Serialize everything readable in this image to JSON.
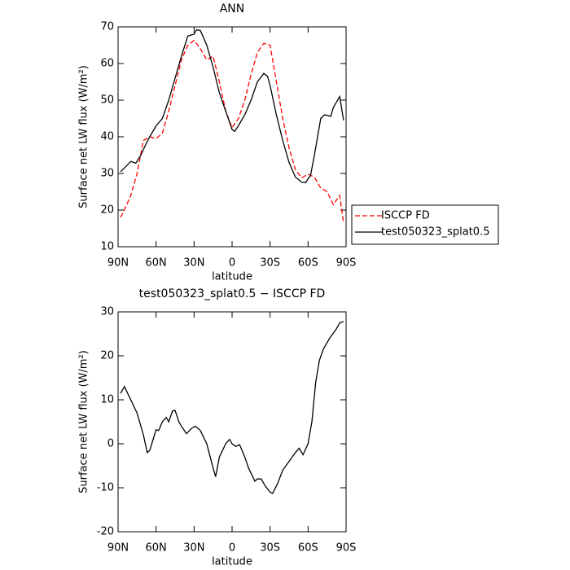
{
  "chart_data": [
    {
      "type": "line",
      "title": "ANN",
      "xlabel": "latitude",
      "ylabel": "Surface net LW flux (W/m²)",
      "xlim": [
        90,
        -90
      ],
      "ylim": [
        10,
        70
      ],
      "xticks": [
        {
          "value": 90,
          "label": "90N"
        },
        {
          "value": 60,
          "label": "60N"
        },
        {
          "value": 30,
          "label": "30N"
        },
        0,
        {
          "value": -30,
          "label": "30S"
        },
        {
          "value": -60,
          "label": "60S"
        },
        {
          "value": -90,
          "label": "90S"
        }
      ],
      "yticks": [
        10,
        20,
        30,
        40,
        50,
        60,
        70
      ],
      "legend": "right",
      "series": [
        {
          "name": "ISCCP FD",
          "color": "#ff0000",
          "line_style": "dashed",
          "x": [
            88,
            85,
            80,
            75,
            70,
            65,
            60,
            55,
            50,
            45,
            40,
            35,
            30,
            25,
            20,
            15,
            10,
            5,
            0,
            -5,
            -10,
            -15,
            -20,
            -25,
            -30,
            -35,
            -40,
            -45,
            -50,
            -55,
            -60,
            -65,
            -70,
            -75,
            -80,
            -85,
            -88
          ],
          "values": [
            18,
            20,
            24,
            30,
            39,
            40,
            39.5,
            41,
            47,
            54,
            61,
            65,
            66.3,
            64,
            61,
            62,
            55,
            47,
            42.5,
            45,
            50,
            57,
            63,
            65.5,
            65,
            55,
            45,
            37,
            31,
            28.8,
            29.8,
            29,
            26,
            25,
            21.5,
            24,
            16.5
          ]
        },
        {
          "name": "test050323_splat0.5",
          "color": "#000000",
          "line_style": "solid",
          "x": [
            88,
            85,
            80,
            76,
            72,
            68,
            65,
            60,
            55,
            50,
            45,
            40,
            35,
            30,
            28,
            25,
            20,
            15,
            10,
            5,
            0,
            -2,
            -5,
            -10,
            -15,
            -20,
            -25,
            -28,
            -30,
            -35,
            -40,
            -45,
            -50,
            -55,
            -58,
            -62,
            -65,
            -70,
            -73,
            -78,
            -80,
            -85,
            -88
          ],
          "values": [
            30.5,
            31.5,
            33.3,
            32.8,
            35,
            38,
            40,
            43,
            45,
            50,
            56,
            62,
            67.5,
            68,
            69.2,
            69,
            65,
            59,
            52,
            47,
            42,
            41.5,
            43,
            46,
            50,
            55,
            57.3,
            56.5,
            54,
            46,
            39,
            33,
            29,
            27.6,
            27.5,
            29.5,
            35,
            45,
            46,
            45.6,
            48,
            51,
            44.5
          ]
        }
      ]
    },
    {
      "type": "line",
      "title": "test050323_splat0.5 − ISCCP FD",
      "xlabel": "latitude",
      "ylabel": "Surface net LW flux (W/m²)",
      "xlim": [
        90,
        -90
      ],
      "ylim": [
        -20,
        30
      ],
      "xticks": [
        {
          "value": 90,
          "label": "90N"
        },
        {
          "value": 60,
          "label": "60N"
        },
        {
          "value": 30,
          "label": "30N"
        },
        0,
        {
          "value": -30,
          "label": "30S"
        },
        {
          "value": -60,
          "label": "60S"
        },
        {
          "value": -90,
          "label": "90S"
        }
      ],
      "yticks": [
        -20,
        -10,
        0,
        10,
        20,
        30
      ],
      "series": [
        {
          "color": "#000000",
          "line_style": "solid",
          "x": [
            88,
            85,
            80,
            75,
            70,
            67,
            65,
            60,
            58,
            55,
            52,
            50,
            47,
            45,
            42,
            40,
            36,
            32,
            29,
            25,
            20,
            15,
            13,
            10,
            5,
            2,
            0,
            -3,
            -6,
            -10,
            -13,
            -18,
            -20,
            -23,
            -26,
            -30,
            -32,
            -36,
            -40,
            -45,
            -50,
            -53,
            -56,
            -60,
            -63,
            -66,
            -69,
            -72,
            -77,
            -82,
            -85,
            -88
          ],
          "values": [
            11.5,
            13,
            10,
            7,
            2,
            -2,
            -1.5,
            3.2,
            3,
            5,
            6,
            5,
            7.5,
            7.6,
            5,
            4,
            2.3,
            3.5,
            4,
            3,
            0,
            -5.5,
            -7.5,
            -3,
            0,
            1,
            0,
            -0.6,
            -0.2,
            -3,
            -5.5,
            -8.5,
            -8,
            -8,
            -9.5,
            -11,
            -11.3,
            -9,
            -6,
            -4,
            -2,
            -1,
            -2.5,
            0,
            5,
            14,
            19,
            21.5,
            24,
            26,
            27.5,
            27.8
          ]
        }
      ]
    }
  ]
}
